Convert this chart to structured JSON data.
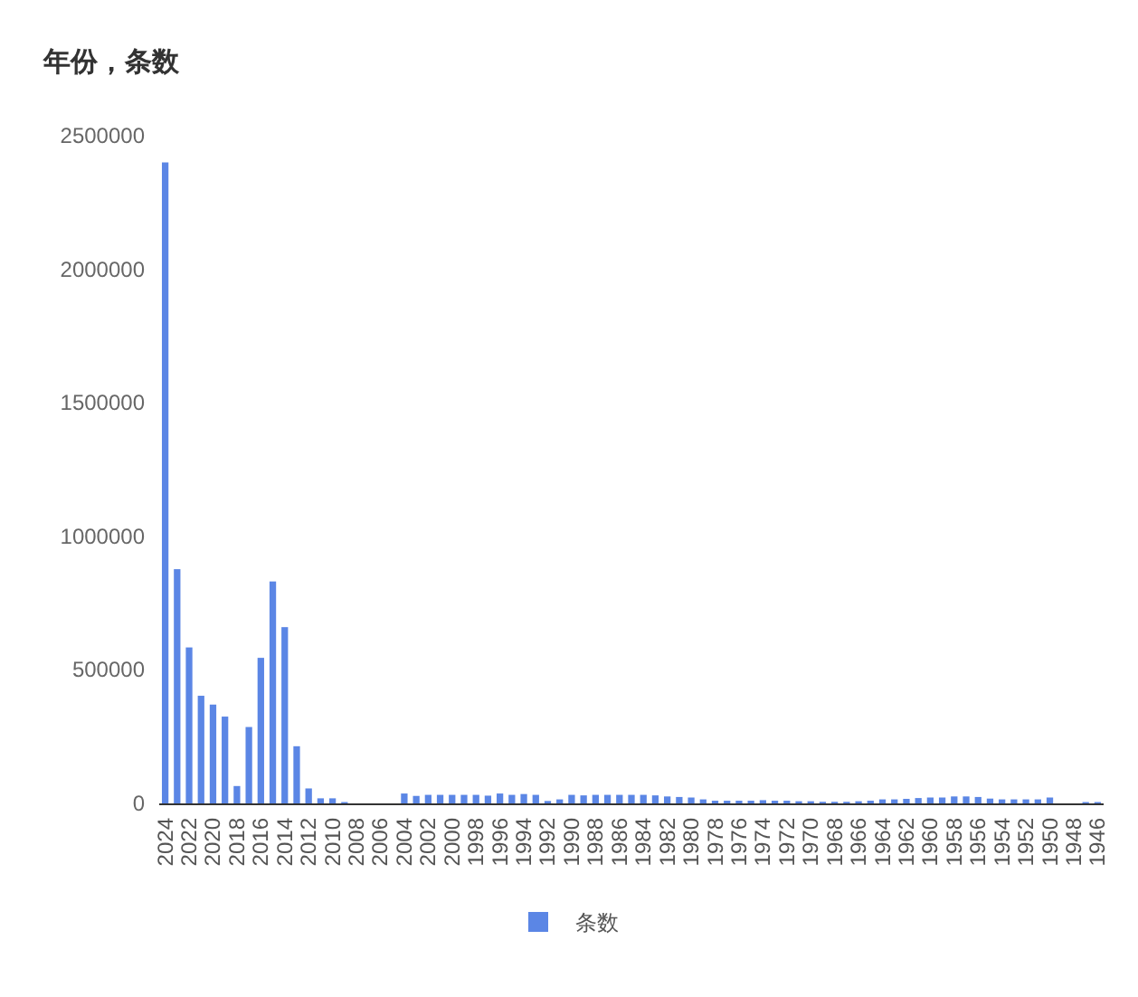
{
  "chart_data": {
    "type": "bar",
    "title": "年份，条数",
    "categories": [
      "2024",
      null,
      "2022",
      null,
      "2020",
      null,
      "2018",
      null,
      "2016",
      null,
      "2014",
      null,
      "2012",
      null,
      "2010",
      null,
      "2008",
      null,
      "2006",
      null,
      "2004",
      null,
      "2002",
      null,
      "2000",
      null,
      "1998",
      null,
      "1996",
      null,
      "1994",
      null,
      "1992",
      null,
      "1990",
      null,
      "1988",
      null,
      "1986",
      null,
      "1984",
      null,
      "1982",
      null,
      "1980",
      null,
      "1978",
      null,
      "1976",
      null,
      "1974",
      null,
      "1972",
      null,
      "1970",
      null,
      "1968",
      null,
      "1966",
      null,
      "1964",
      null,
      "1962",
      null,
      "1960",
      null,
      "1958",
      null,
      "1956",
      null,
      "1954",
      null,
      "1952",
      null,
      "1950",
      null,
      "1948",
      null,
      "1946"
    ],
    "series": [
      {
        "name": "条数",
        "color": "#5b86e5",
        "values": [
          2400000,
          877000,
          584000,
          403000,
          370000,
          325000,
          65000,
          286000,
          545000,
          831000,
          660000,
          214000,
          56000,
          19000,
          19000,
          5000,
          0,
          0,
          0,
          0,
          37000,
          28000,
          32000,
          32000,
          32000,
          32000,
          32000,
          29000,
          37000,
          32000,
          35000,
          32000,
          9000,
          15000,
          32000,
          30000,
          32000,
          32000,
          32000,
          32000,
          32000,
          30000,
          26000,
          24000,
          22000,
          15000,
          10000,
          10000,
          10000,
          10000,
          12000,
          10000,
          10000,
          8000,
          8000,
          6000,
          6000,
          6000,
          8000,
          10000,
          15000,
          15000,
          17000,
          20000,
          22000,
          22000,
          26000,
          26000,
          24000,
          18000,
          15000,
          15000,
          15000,
          15000,
          22000,
          0,
          0,
          5000,
          5000
        ]
      }
    ],
    "ylim": [
      0,
      2500000
    ],
    "yticks": [
      0,
      500000,
      1000000,
      1500000,
      2000000,
      2500000
    ],
    "grid": false,
    "legend": "bottom"
  }
}
